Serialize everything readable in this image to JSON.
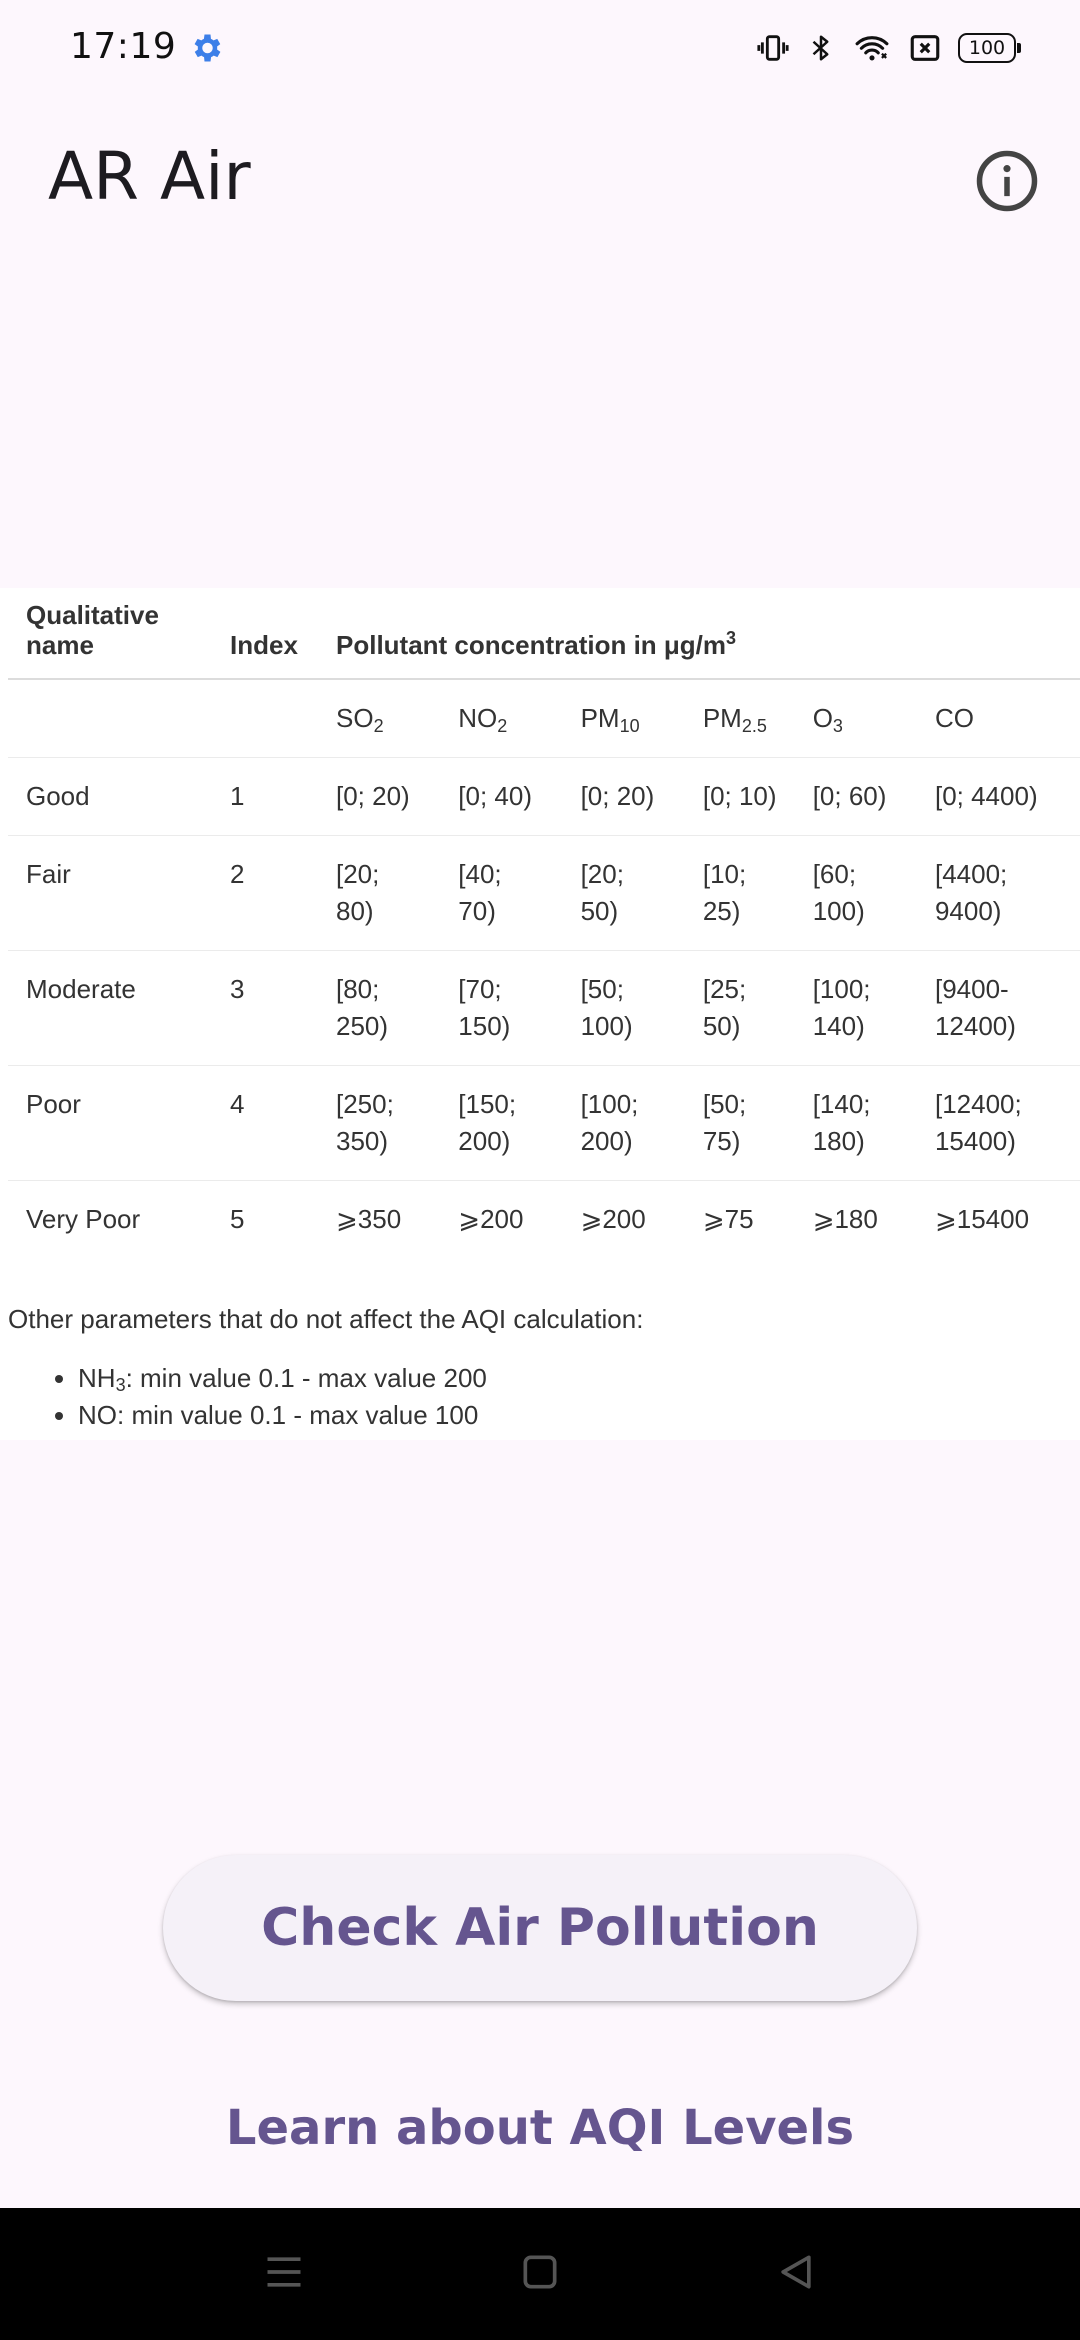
{
  "status_bar": {
    "time": "17:19",
    "battery": "100",
    "icons": [
      "settings-gear-icon",
      "vibrate-icon",
      "bluetooth-icon",
      "wifi-icon",
      "no-sim-icon",
      "battery-icon"
    ]
  },
  "app_bar": {
    "title": "AR Air",
    "info_icon": "info-icon"
  },
  "aqi_table": {
    "headers": {
      "qualitative_name": "Qualitative name",
      "index": "Index",
      "concentration_prefix": "Pollutant concentration in μg/m",
      "concentration_sup": "3"
    },
    "pollutants": [
      {
        "base": "SO",
        "sub": "2"
      },
      {
        "base": "NO",
        "sub": "2"
      },
      {
        "base": "PM",
        "sub": "10"
      },
      {
        "base": "PM",
        "sub": "2.5"
      },
      {
        "base": "O",
        "sub": "3"
      },
      {
        "base": "CO",
        "sub": ""
      }
    ],
    "rows": [
      {
        "name": "Good",
        "index": "1",
        "values": [
          "[0; 20)",
          "[0; 40)",
          "[0; 20)",
          "[0; 10)",
          "[0; 60)",
          "[0; 4400)"
        ]
      },
      {
        "name": "Fair",
        "index": "2",
        "values": [
          "[20; 80)",
          "[40; 70)",
          "[20; 50)",
          "[10; 25)",
          "[60; 100)",
          "[4400; 9400)"
        ]
      },
      {
        "name": "Moderate",
        "index": "3",
        "values": [
          "[80; 250)",
          "[70; 150)",
          "[50; 100)",
          "[25; 50)",
          "[100; 140)",
          "[9400-12400)"
        ]
      },
      {
        "name": "Poor",
        "index": "4",
        "values": [
          "[250; 350)",
          "[150; 200)",
          "[100; 200)",
          "[50; 75)",
          "[140; 180)",
          "[12400; 15400)"
        ]
      },
      {
        "name": "Very Poor",
        "index": "5",
        "values": [
          "⩾350",
          "⩾200",
          "⩾200",
          "⩾75",
          "⩾180",
          "⩾15400"
        ]
      }
    ]
  },
  "other_params": {
    "intro": "Other parameters that do not affect the AQI calculation:",
    "items": [
      {
        "base": "NH",
        "sub": "3",
        "rest": ": min value 0.1 - max value 200"
      },
      {
        "base": "NO",
        "sub": "",
        "rest": ": min value 0.1 - max value 100"
      }
    ]
  },
  "actions": {
    "check_button": "Check Air Pollution",
    "learn_link": "Learn about AQI Levels"
  },
  "nav_bar": {
    "icons": [
      "menu-icon",
      "home-icon",
      "back-icon"
    ]
  }
}
